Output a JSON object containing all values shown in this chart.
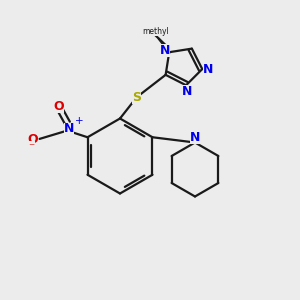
{
  "bg_color": "#ececec",
  "bond_color": "#1a1a1a",
  "N_color": "#0000ee",
  "O_color": "#dd0000",
  "S_color": "#aaaa00",
  "figsize": [
    3.0,
    3.0
  ],
  "dpi": 100,
  "lw": 1.6,
  "fs": 8.5,
  "xlim": [
    0,
    10
  ],
  "ylim": [
    0,
    10
  ]
}
